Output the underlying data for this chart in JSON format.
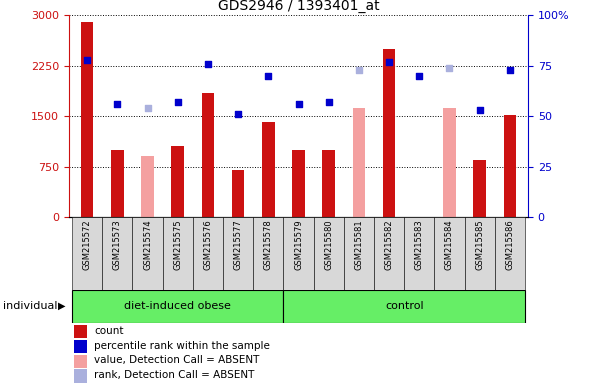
{
  "title": "GDS2946 / 1393401_at",
  "samples": [
    "GSM215572",
    "GSM215573",
    "GSM215574",
    "GSM215575",
    "GSM215576",
    "GSM215577",
    "GSM215578",
    "GSM215579",
    "GSM215580",
    "GSM215581",
    "GSM215582",
    "GSM215583",
    "GSM215584",
    "GSM215585",
    "GSM215586"
  ],
  "bar_values": [
    2900,
    1000,
    null,
    1050,
    1850,
    700,
    1420,
    1000,
    1000,
    null,
    2500,
    null,
    null,
    850,
    1520
  ],
  "bar_absent_values": [
    null,
    null,
    900,
    null,
    null,
    null,
    null,
    null,
    null,
    1620,
    null,
    null,
    1620,
    null,
    null
  ],
  "dot_rank_pct": [
    78.0,
    56.0,
    null,
    57.0,
    76.0,
    51.0,
    70.0,
    56.0,
    57.0,
    null,
    77.0,
    70.0,
    null,
    53.0,
    73.0
  ],
  "dot_absent_pct": [
    null,
    null,
    54.0,
    null,
    null,
    null,
    null,
    null,
    null,
    73.0,
    null,
    null,
    74.0,
    null,
    null
  ],
  "ylim_left": [
    0,
    3000
  ],
  "ylim_right": [
    0,
    100
  ],
  "yticks_left": [
    0,
    750,
    1500,
    2250,
    3000
  ],
  "yticks_right": [
    0,
    25,
    50,
    75,
    100
  ],
  "bar_color": "#cc1111",
  "bar_absent_color": "#f4a0a0",
  "dot_color": "#0000cc",
  "dot_absent_color": "#aab0dd",
  "group1_label": "diet-induced obese",
  "group2_label": "control",
  "group1_indices": [
    0,
    1,
    2,
    3,
    4,
    5,
    6
  ],
  "group2_indices": [
    7,
    8,
    9,
    10,
    11,
    12,
    13,
    14
  ],
  "individual_label": "individual",
  "legend_labels": [
    "count",
    "percentile rank within the sample",
    "value, Detection Call = ABSENT",
    "rank, Detection Call = ABSENT"
  ],
  "legend_colors": [
    "#cc1111",
    "#0000cc",
    "#f4a0a0",
    "#aab0dd"
  ],
  "bg_color": "#d8d8d8",
  "green_color": "#66ee66"
}
